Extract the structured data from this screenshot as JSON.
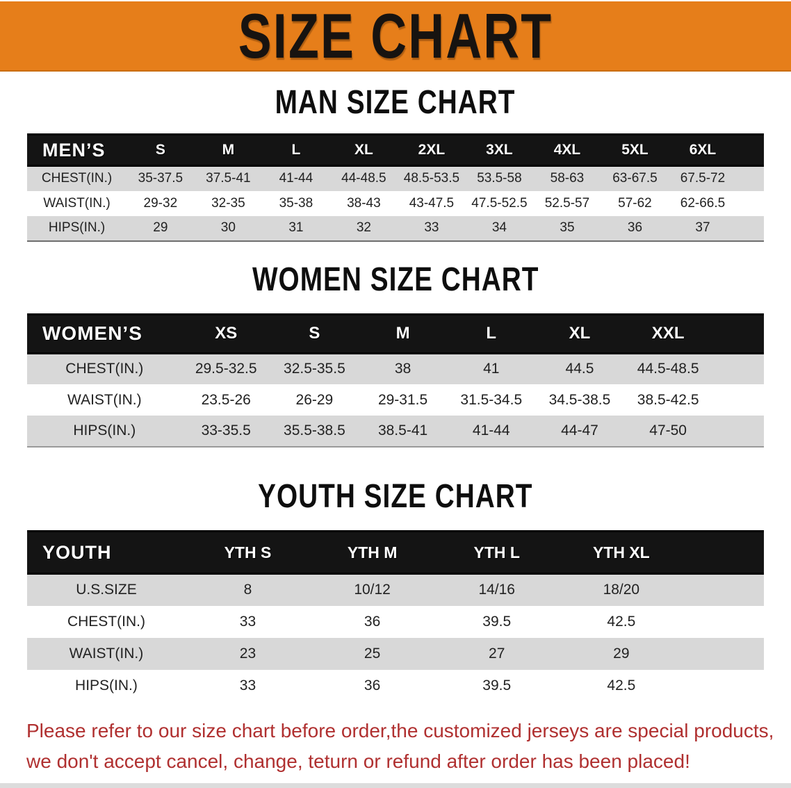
{
  "banner": {
    "title": "SIZE CHART",
    "bg_color": "#E67E1A"
  },
  "colors": {
    "banner_orange": "#E67E1A",
    "header_black": "#141414",
    "row_gray": "#D8D8D8",
    "footnote_red": "#B03030"
  },
  "sections": [
    {
      "title": "MAN SIZE CHART",
      "corner_label": "MEN’S",
      "columns": [
        "S",
        "M",
        "L",
        "XL",
        "2XL",
        "3XL",
        "4XL",
        "5XL",
        "6XL"
      ],
      "rows": [
        {
          "label": "CHEST(IN.)",
          "values": [
            "35-37.5",
            "37.5-41",
            "41-44",
            "44-48.5",
            "48.5-53.5",
            "53.5-58",
            "58-63",
            "63-67.5",
            "67.5-72"
          ]
        },
        {
          "label": "WAIST(IN.)",
          "values": [
            "29-32",
            "32-35",
            "35-38",
            "38-43",
            "43-47.5",
            "47.5-52.5",
            "52.5-57",
            "57-62",
            "62-66.5"
          ]
        },
        {
          "label": "HIPS(IN.)",
          "values": [
            "29",
            "30",
            "31",
            "32",
            "33",
            "34",
            "35",
            "36",
            "37"
          ]
        }
      ]
    },
    {
      "title": "WOMEN SIZE CHART",
      "corner_label": "WOMEN’S",
      "columns": [
        "XS",
        "S",
        "M",
        "L",
        "XL",
        "XXL"
      ],
      "rows": [
        {
          "label": "CHEST(IN.)",
          "values": [
            "29.5-32.5",
            "32.5-35.5",
            "38",
            "41",
            "44.5",
            "44.5-48.5"
          ]
        },
        {
          "label": "WAIST(IN.)",
          "values": [
            "23.5-26",
            "26-29",
            "29-31.5",
            "31.5-34.5",
            "34.5-38.5",
            "38.5-42.5"
          ]
        },
        {
          "label": "HIPS(IN.)",
          "values": [
            "33-35.5",
            "35.5-38.5",
            "38.5-41",
            "41-44",
            "44-47",
            "47-50"
          ]
        }
      ]
    },
    {
      "title": "YOUTH SIZE CHART",
      "corner_label": "YOUTH",
      "columns": [
        "YTH S",
        "YTH M",
        "YTH L",
        "YTH XL"
      ],
      "rows": [
        {
          "label": "U.S.SIZE",
          "values": [
            "8",
            "10/12",
            "14/16",
            "18/20"
          ]
        },
        {
          "label": "CHEST(IN.)",
          "values": [
            "33",
            "36",
            "39.5",
            "42.5"
          ]
        },
        {
          "label": "WAIST(IN.)",
          "values": [
            "23",
            "25",
            "27",
            "29"
          ]
        },
        {
          "label": "HIPS(IN.)",
          "values": [
            "33",
            "36",
            "39.5",
            "42.5"
          ]
        }
      ]
    }
  ],
  "footnote": {
    "line1": "Please refer to our size chart before order,the customized jerseys are special products,",
    "line2": "we don't accept cancel, change, teturn or refund after order has been placed!"
  }
}
